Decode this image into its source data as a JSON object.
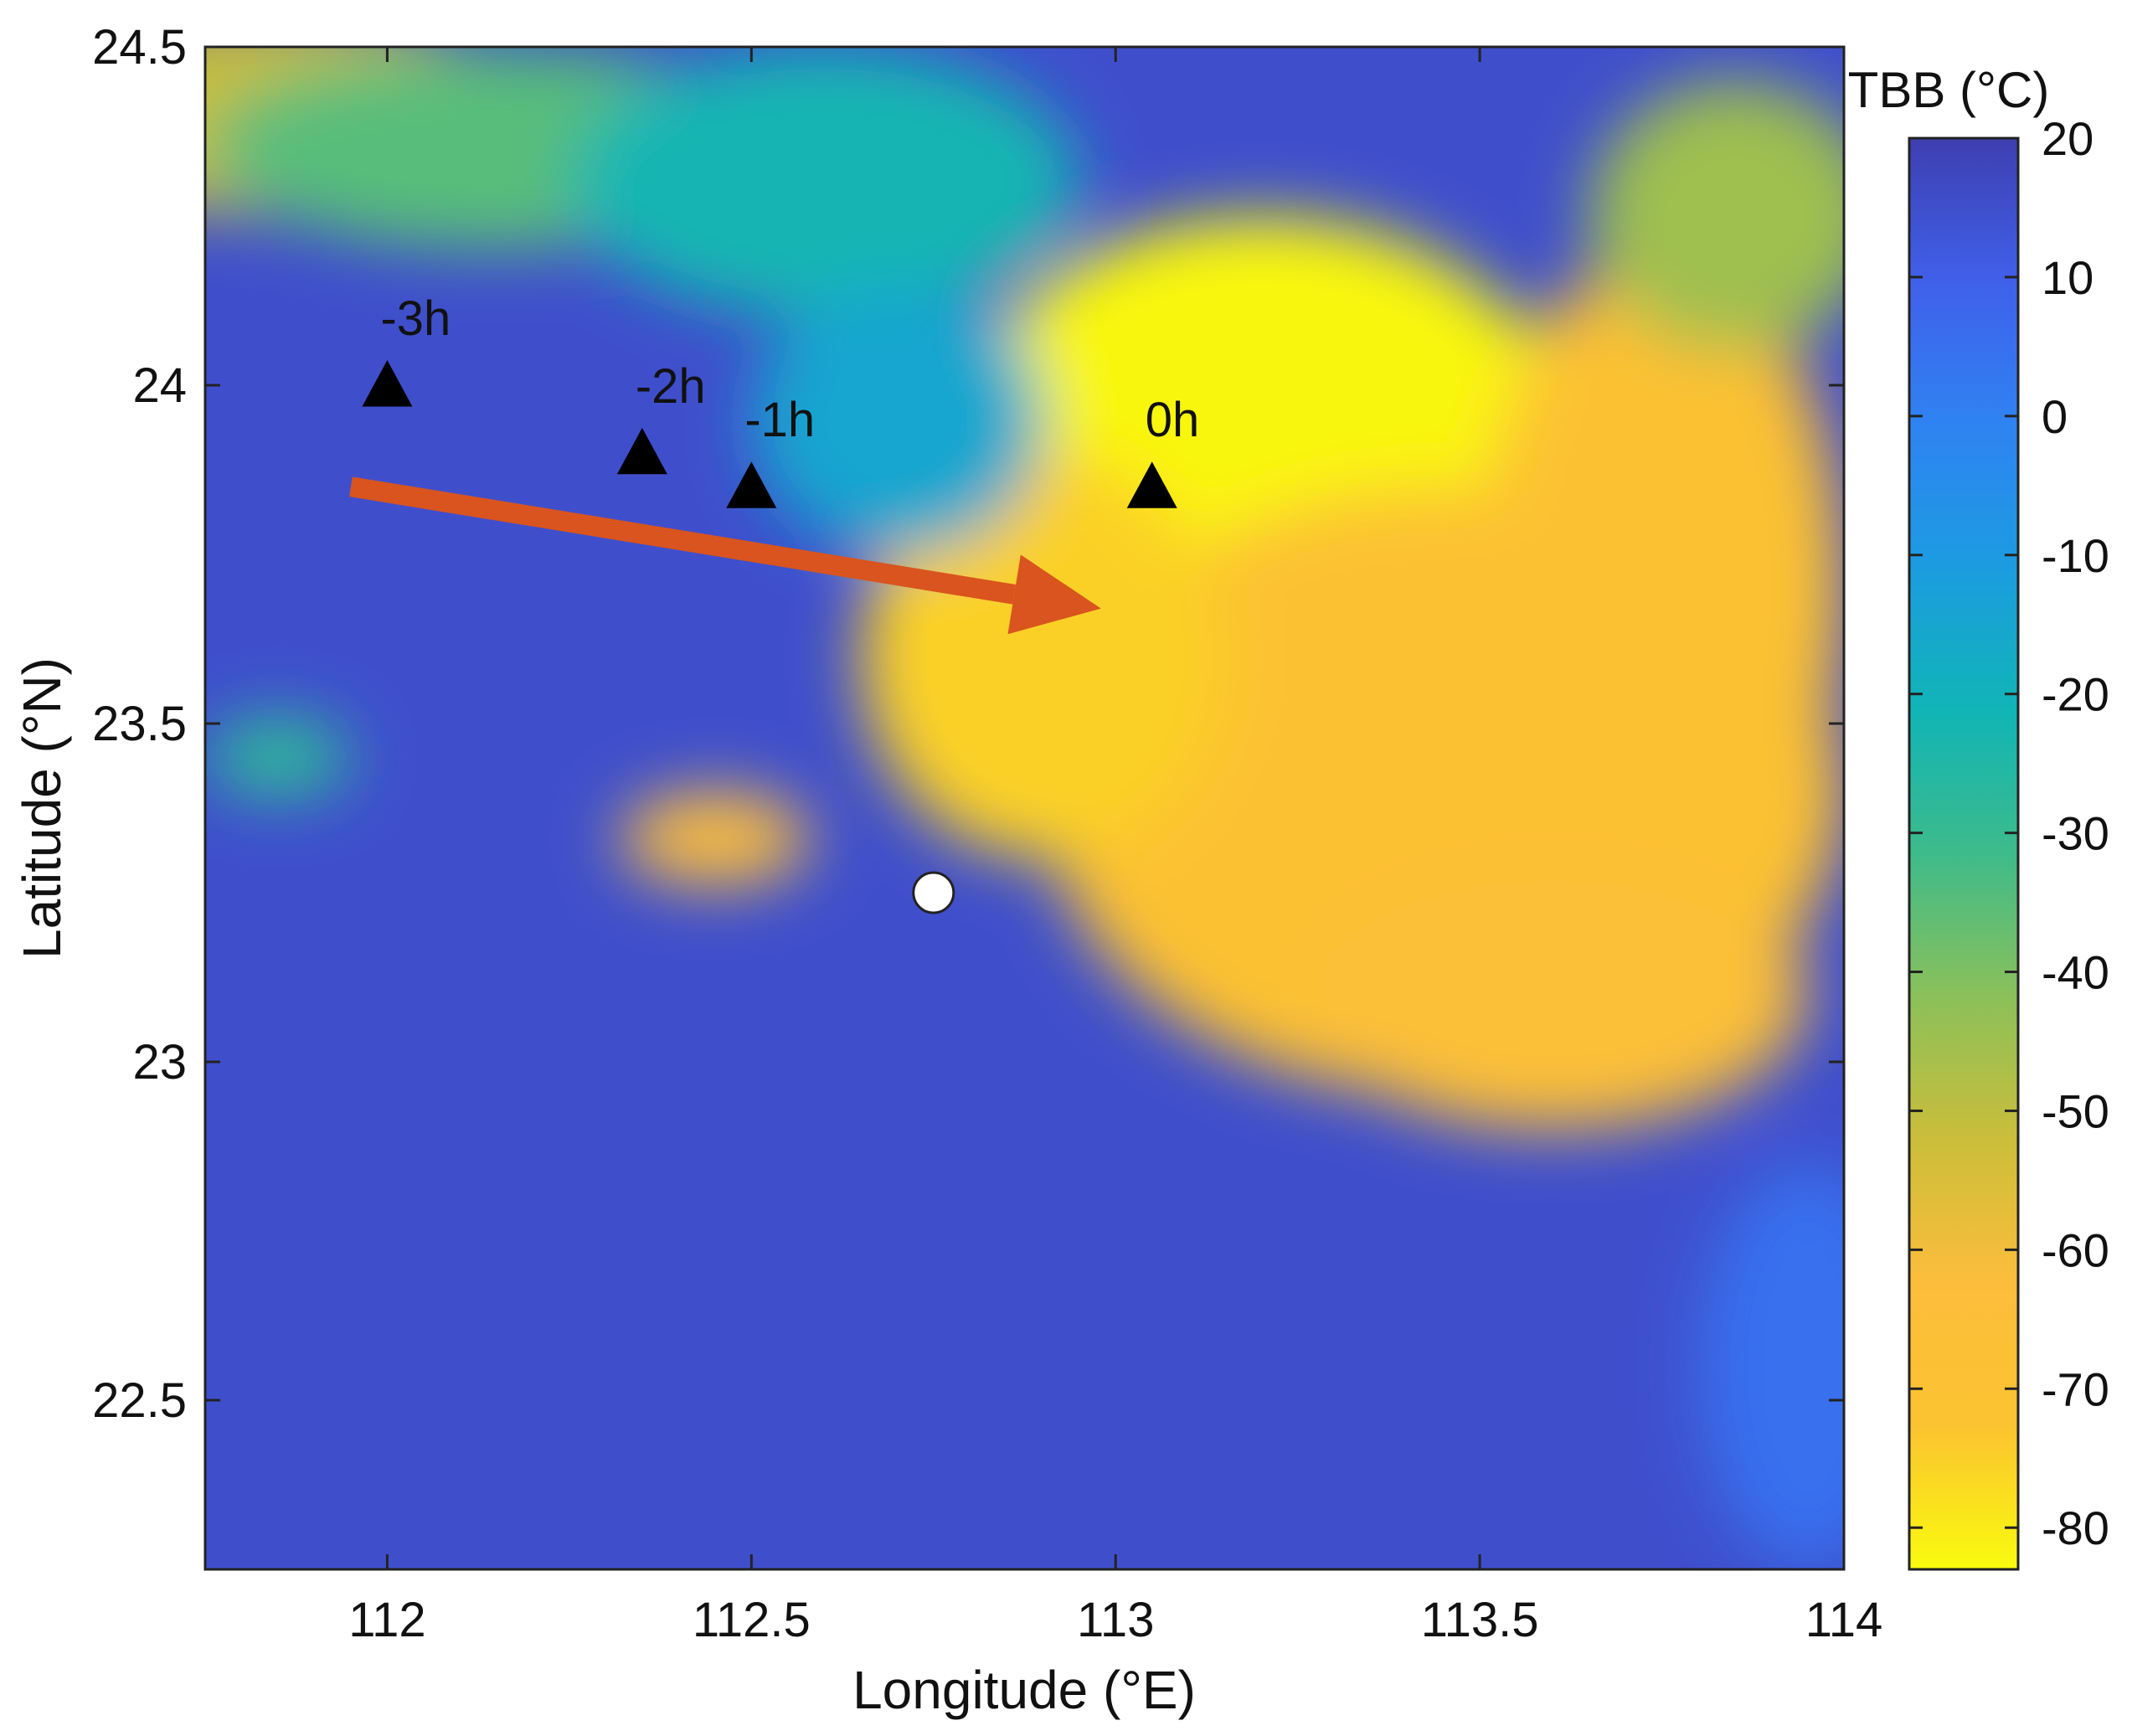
{
  "map": {
    "x_axis_label": "Longitude (°E)",
    "y_axis_label": "Latitude (°N)",
    "x_range": [
      111.75,
      114.0
    ],
    "y_range": [
      22.25,
      24.5
    ],
    "x_ticks": [
      112,
      112.5,
      113,
      113.5,
      114
    ],
    "y_ticks": [
      22.5,
      23,
      23.5,
      24,
      24.5
    ],
    "x_tick_labels": [
      "112",
      "112.5",
      "113",
      "113.5",
      "114"
    ],
    "y_tick_labels": [
      "22.5",
      "23",
      "23.5",
      "24",
      "24.5"
    ],
    "colormap": "parula (reversed): yellow = cold, dark blue = warm",
    "grid": false
  },
  "colorbar": {
    "title": "TBB (°C)",
    "range": [
      -83,
      20
    ],
    "ticks": [
      20,
      10,
      0,
      -10,
      -20,
      -30,
      -40,
      -50,
      -60,
      -70,
      -80
    ],
    "tick_labels": [
      "20",
      "10",
      "0",
      "-10",
      "-20",
      "-30",
      "-40",
      "-50",
      "-60",
      "-70",
      "-80"
    ],
    "colors": [
      "#f9fb0e",
      "#fbc330",
      "#fdbd3c",
      "#cbbe3a",
      "#8bc05a",
      "#3ebb8a",
      "#10b5b6",
      "#1c9ce0",
      "#2f83f2",
      "#4060ea",
      "#3e3fb0"
    ]
  },
  "markers": [
    {
      "label": "-3h",
      "lon": 112.0,
      "lat": 24.0,
      "shape": "triangle"
    },
    {
      "label": "-2h",
      "lon": 112.35,
      "lat": 23.9,
      "shape": "triangle"
    },
    {
      "label": "-1h",
      "lon": 112.5,
      "lat": 23.85,
      "shape": "triangle"
    },
    {
      "label": "0h",
      "lon": 113.05,
      "lat": 23.85,
      "shape": "triangle"
    }
  ],
  "station": {
    "lon": 112.75,
    "lat": 23.25,
    "shape": "circle",
    "color": "#ffffff"
  },
  "motion_arrow": {
    "from": [
      111.95,
      23.85
    ],
    "to": [
      112.98,
      23.67
    ],
    "color": "#d9541e"
  },
  "tbb_field_description": "cold cloud region (yellow, about -70 to -80 °C) in the east and northeast; warm clear region (dark blue, about 10 to 20 °C) in the west and south",
  "field_cells": [
    {
      "lon": 113.3,
      "lat": 23.7,
      "rx": 0.55,
      "ry": 0.45,
      "value": -78
    },
    {
      "lon": 113.2,
      "lat": 23.95,
      "rx": 0.4,
      "ry": 0.3,
      "value": -82
    },
    {
      "lon": 113.45,
      "lat": 23.4,
      "rx": 0.55,
      "ry": 0.45,
      "value": -70
    },
    {
      "lon": 112.9,
      "lat": 23.6,
      "rx": 0.25,
      "ry": 0.3,
      "value": -75
    },
    {
      "lon": 113.75,
      "lat": 23.7,
      "rx": 0.25,
      "ry": 0.5,
      "value": -70
    },
    {
      "lon": 113.6,
      "lat": 23.1,
      "rx": 0.35,
      "ry": 0.2,
      "value": -65
    },
    {
      "lon": 113.85,
      "lat": 24.25,
      "rx": 0.2,
      "ry": 0.2,
      "value": -45
    },
    {
      "lon": 112.45,
      "lat": 23.33,
      "rx": 0.13,
      "ry": 0.07,
      "value": -62
    },
    {
      "lon": 111.85,
      "lat": 24.4,
      "rx": 0.35,
      "ry": 0.15,
      "value": -52
    },
    {
      "lon": 112.15,
      "lat": 24.35,
      "rx": 0.4,
      "ry": 0.15,
      "value": -35
    },
    {
      "lon": 112.6,
      "lat": 24.3,
      "rx": 0.35,
      "ry": 0.2,
      "value": -22
    },
    {
      "lon": 111.85,
      "lat": 23.45,
      "rx": 0.1,
      "ry": 0.06,
      "value": -28
    },
    {
      "lon": 113.95,
      "lat": 22.55,
      "rx": 0.15,
      "ry": 0.3,
      "value": 5
    },
    {
      "lon": 112.7,
      "lat": 23.95,
      "rx": 0.2,
      "ry": 0.2,
      "value": -15
    }
  ]
}
